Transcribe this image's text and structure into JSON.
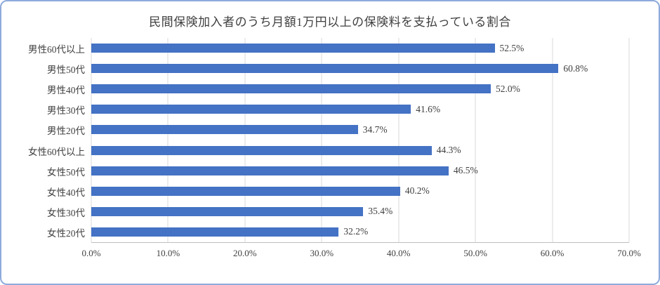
{
  "chart_data": {
    "type": "bar",
    "orientation": "horizontal",
    "title": "民間保険加入者のうち月額1万円以上の保険料を支払っている割合",
    "categories": [
      "男性60代以上",
      "男性50代",
      "男性40代",
      "男性30代",
      "男性20代",
      "女性60代以上",
      "女性50代",
      "女性40代",
      "女性30代",
      "女性20代"
    ],
    "values": [
      52.5,
      60.8,
      52.0,
      41.6,
      34.7,
      44.3,
      46.5,
      40.2,
      35.4,
      32.2
    ],
    "value_labels": [
      "52.5%",
      "60.8%",
      "52.0%",
      "41.6%",
      "34.7%",
      "44.3%",
      "46.5%",
      "40.2%",
      "35.4%",
      "32.2%"
    ],
    "xlabel": "",
    "ylabel": "",
    "xlim": [
      0,
      70
    ],
    "x_ticks": [
      "0.0%",
      "10.0%",
      "20.0%",
      "30.0%",
      "40.0%",
      "50.0%",
      "60.0%",
      "70.0%"
    ],
    "grid": true,
    "legend": false,
    "bar_color": "#4472c4",
    "gridline_color": "#d9d9d9",
    "axis_line_color": "#bfbfbf",
    "text_color": "#404040",
    "frame_border_color": "#8faadc"
  }
}
